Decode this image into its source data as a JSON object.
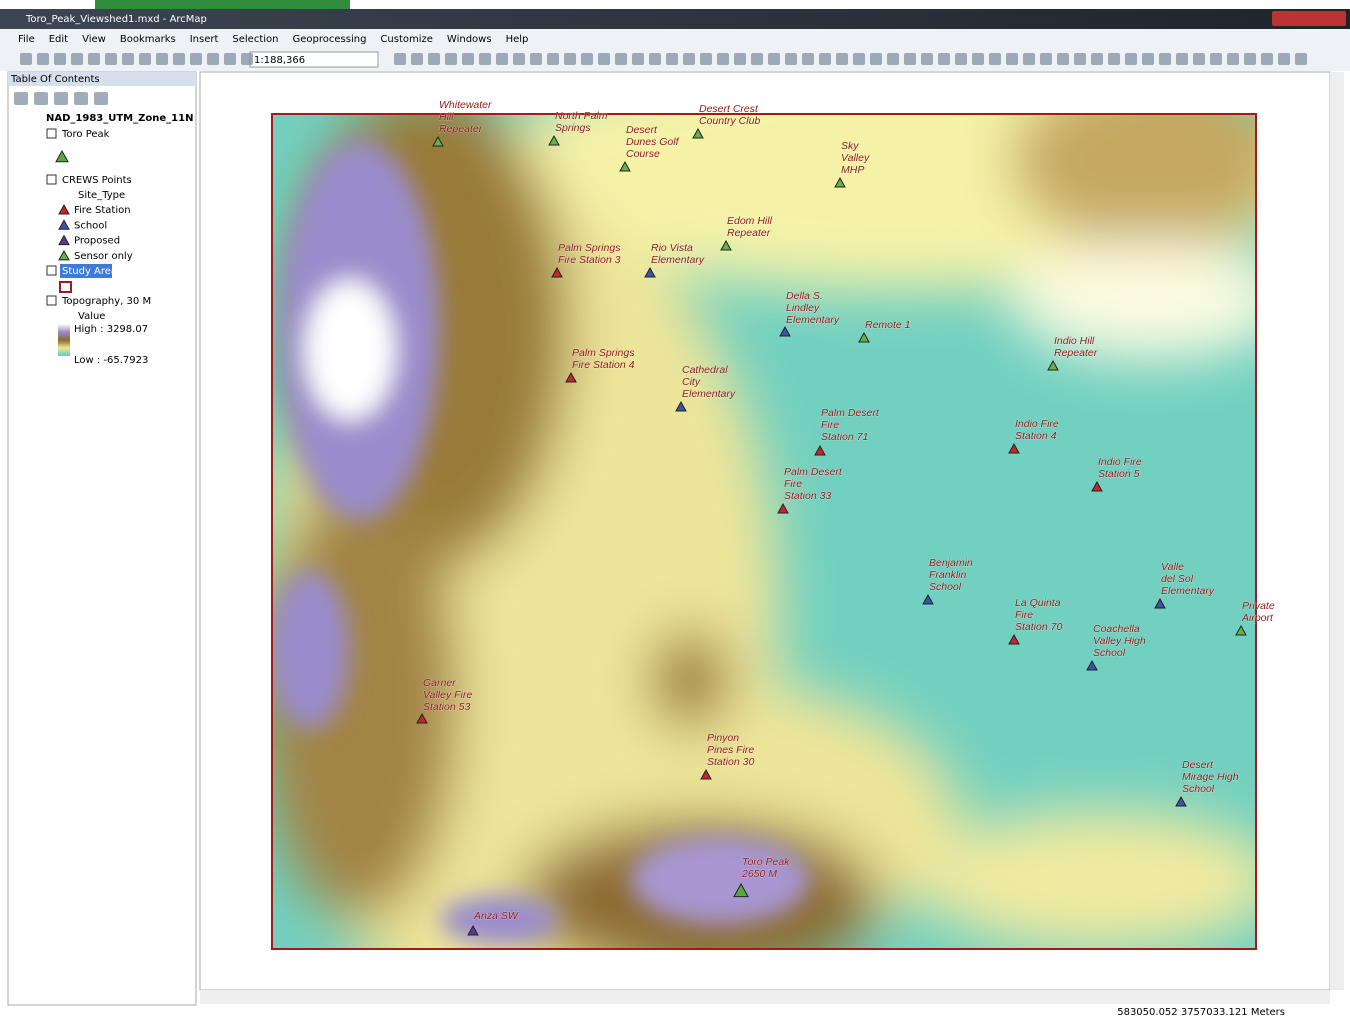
{
  "window": {
    "title": "Toro_Peak_Viewshed1.mxd - ArcMap"
  },
  "menu": [
    "File",
    "Edit",
    "View",
    "Bookmarks",
    "Insert",
    "Selection",
    "Geoprocessing",
    "Customize",
    "Windows",
    "Help"
  ],
  "toolbar": {
    "scale": "1:188,366"
  },
  "toc": {
    "title": "Table Of Contents",
    "frame": "NAD_1983_UTM_Zone_11N",
    "layers": [
      {
        "name": "Toro Peak",
        "color": "#5aa842"
      },
      {
        "name": "CREWS Points",
        "field": "Site_Type"
      },
      {
        "name": "Study Area",
        "color": "#a01c1c"
      },
      {
        "name": "Topography, 30 M",
        "field": "Value",
        "high": "High : 3298.07",
        "low": "Low : -65.7923"
      }
    ]
  },
  "site_types": [
    {
      "name": "Fire Station",
      "color": "#c4262b",
      "points": [
        {
          "lines": [
            "Palm Springs",
            "Fire Station 3"
          ]
        },
        {
          "lines": [
            "Palm Springs",
            "Fire Station 4"
          ]
        },
        {
          "lines": [
            "Palm Desert",
            "Fire",
            "Station 71"
          ]
        },
        {
          "lines": [
            "Palm Desert",
            "Fire",
            "Station 33"
          ]
        },
        {
          "lines": [
            "Indio Fire",
            "Station 4"
          ]
        },
        {
          "lines": [
            "Indio Fire",
            "Station 5"
          ]
        },
        {
          "lines": [
            "La Quinta",
            "Fire",
            "Station 70"
          ]
        },
        {
          "lines": [
            "Garner",
            "Valley Fire",
            "Station 53"
          ]
        },
        {
          "lines": [
            "Pinyon",
            "Pines Fire",
            "Station 30"
          ]
        }
      ]
    },
    {
      "name": "School",
      "color": "#3a55a6",
      "points": [
        {
          "lines": [
            "Rio Vista",
            "Elementary"
          ]
        },
        {
          "lines": [
            "Della S.",
            "Lindley",
            "Elementary"
          ]
        },
        {
          "lines": [
            "Cathedral",
            "City",
            "Elementary"
          ]
        },
        {
          "lines": [
            "Benjamin",
            "Franklin",
            "School"
          ]
        },
        {
          "lines": [
            "Valle",
            "del Sol",
            "Elementary"
          ]
        },
        {
          "lines": [
            "Coachella",
            "Valley High",
            "School"
          ]
        },
        {
          "lines": [
            "Desert",
            "Mirage High",
            "School"
          ]
        }
      ]
    },
    {
      "name": "Proposed",
      "color": "#5b3a8e",
      "points": [
        {
          "lines": [
            "Anza SW"
          ]
        }
      ]
    },
    {
      "name": "Sensor only",
      "color": "#68b04a",
      "points": [
        {
          "lines": [
            "Whitewater",
            "Hill",
            "Repeater"
          ]
        },
        {
          "lines": [
            "North Palm",
            "Springs"
          ]
        },
        {
          "lines": [
            "Desert",
            "Dunes Golf",
            "Course"
          ]
        },
        {
          "lines": [
            "Desert Crest",
            "Country Club"
          ]
        },
        {
          "lines": [
            "Sky",
            "Valley",
            "MHP"
          ]
        },
        {
          "lines": [
            "Edom Hill",
            "Repeater"
          ]
        },
        {
          "lines": [
            "Remote 1"
          ]
        },
        {
          "lines": [
            "Indio Hill",
            "Repeater"
          ]
        },
        {
          "lines": [
            "Private",
            "Airport"
          ]
        }
      ]
    }
  ],
  "map": {
    "label_color": "#8e1b1b",
    "toro_peak": {
      "lines": [
        "Toro Peak",
        "2650 M"
      ]
    }
  },
  "status": "583050.052  3757033.121 Meters"
}
